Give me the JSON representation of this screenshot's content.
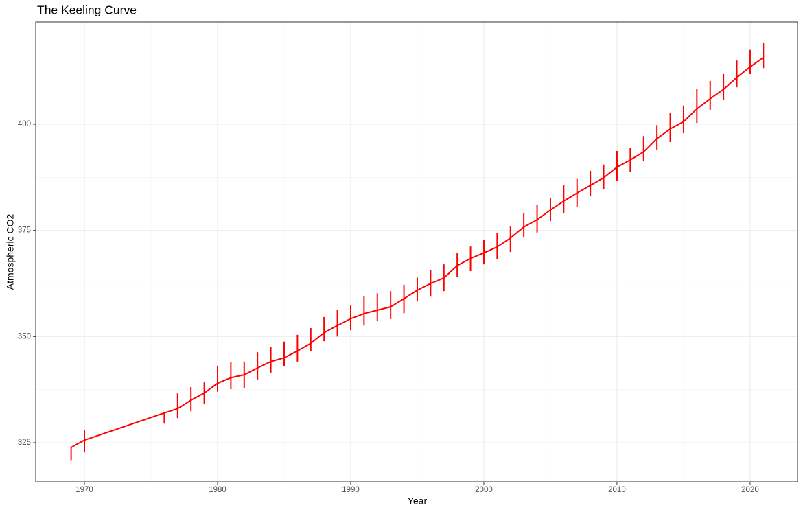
{
  "chart_data": {
    "type": "line",
    "title": "The Keeling Curve",
    "x_label": "Year",
    "y_label": "Atmospheric CO2",
    "x": [
      1969,
      1970,
      1976,
      1977,
      1978,
      1979,
      1980,
      1981,
      1982,
      1983,
      1984,
      1985,
      1986,
      1987,
      1988,
      1989,
      1990,
      1991,
      1992,
      1993,
      1994,
      1995,
      1996,
      1997,
      1998,
      1999,
      2000,
      2001,
      2002,
      2003,
      2004,
      2005,
      2006,
      2007,
      2008,
      2009,
      2010,
      2011,
      2012,
      2013,
      2014,
      2015,
      2016,
      2017,
      2018,
      2019,
      2020,
      2021
    ],
    "values": [
      323.9,
      325.6,
      332.0,
      333.0,
      335.0,
      336.7,
      339.0,
      340.3,
      341.0,
      342.6,
      344.1,
      345.0,
      346.6,
      348.4,
      350.9,
      352.6,
      354.2,
      355.4,
      356.2,
      357.0,
      358.9,
      360.9,
      362.5,
      363.8,
      366.7,
      368.4,
      369.7,
      371.1,
      373.2,
      375.8,
      377.5,
      379.8,
      381.9,
      383.8,
      385.6,
      387.4,
      389.9,
      391.6,
      393.5,
      396.6,
      398.9,
      400.6,
      403.6,
      406.0,
      408.2,
      411.0,
      413.5,
      415.7
    ],
    "ymin": [
      320.9,
      322.7,
      329.5,
      330.8,
      332.4,
      334.1,
      337.0,
      337.6,
      337.8,
      339.9,
      341.5,
      343.1,
      344.1,
      346.5,
      348.9,
      350.0,
      351.5,
      352.6,
      353.6,
      354.1,
      355.5,
      358.3,
      359.4,
      360.7,
      364.1,
      365.4,
      367.0,
      368.3,
      369.9,
      373.3,
      374.5,
      377.2,
      379.0,
      380.6,
      383.0,
      384.8,
      386.7,
      388.8,
      391.3,
      393.9,
      395.8,
      397.9,
      400.3,
      403.4,
      405.8,
      408.7,
      411.8,
      413.2
    ],
    "ymax": [
      324.0,
      327.9,
      332.3,
      336.6,
      338.1,
      339.2,
      343.1,
      343.9,
      344.1,
      346.3,
      347.6,
      348.8,
      350.4,
      352.0,
      354.6,
      356.2,
      357.3,
      359.6,
      360.2,
      360.7,
      362.2,
      363.9,
      365.6,
      367.0,
      369.6,
      371.2,
      372.7,
      374.3,
      375.9,
      379.0,
      381.1,
      382.7,
      385.6,
      387.1,
      389.0,
      390.5,
      393.7,
      394.5,
      397.2,
      399.8,
      402.6,
      404.4,
      408.4,
      410.2,
      411.8,
      415.0,
      417.5,
      419.2
    ],
    "color": "#ff0000",
    "xlim": [
      1966.34,
      2023.56
    ],
    "xticks": [
      1970,
      1980,
      1990,
      2000,
      2010,
      2020
    ],
    "ylim": [
      315.79,
      424.08
    ],
    "yticks": [
      325,
      350,
      375,
      400
    ],
    "grid": true
  }
}
